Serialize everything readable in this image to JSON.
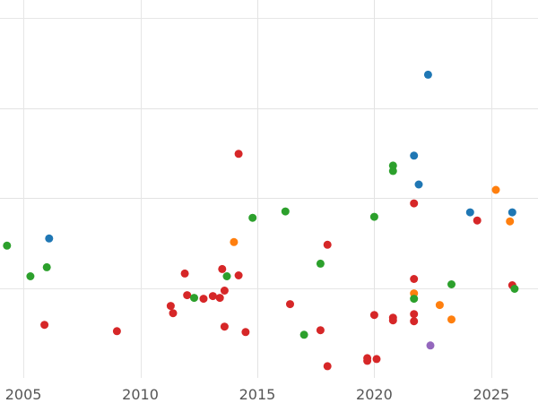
{
  "chart_data": {
    "type": "scatter",
    "title": "",
    "xlabel": "",
    "ylabel": "",
    "xlim": [
      2004,
      2027
    ],
    "ylim": [
      0,
      4.2
    ],
    "grid": true,
    "legend": "none",
    "x_ticks": [
      {
        "value": 2005,
        "label": "2005"
      },
      {
        "value": 2010,
        "label": "2010"
      },
      {
        "value": 2015,
        "label": "2015"
      },
      {
        "value": 2020,
        "label": "2020"
      },
      {
        "value": 2025,
        "label": "2025"
      }
    ],
    "y_gridlines": [
      1,
      2,
      3,
      4
    ],
    "colors": {
      "blue": "#1f77b4",
      "green": "#2ca02c",
      "red": "#d62728",
      "orange": "#ff7f0e",
      "purple": "#9467bd"
    },
    "points": [
      {
        "x": 2004.3,
        "y": 1.47,
        "c": "green"
      },
      {
        "x": 2005.3,
        "y": 1.13,
        "c": "green"
      },
      {
        "x": 2006.0,
        "y": 1.23,
        "c": "green"
      },
      {
        "x": 2006.1,
        "y": 1.55,
        "c": "blue"
      },
      {
        "x": 2005.9,
        "y": 0.59,
        "c": "red"
      },
      {
        "x": 2009.0,
        "y": 0.52,
        "c": "red"
      },
      {
        "x": 2011.3,
        "y": 0.8,
        "c": "red"
      },
      {
        "x": 2011.4,
        "y": 0.72,
        "c": "red"
      },
      {
        "x": 2011.9,
        "y": 1.16,
        "c": "red"
      },
      {
        "x": 2012.0,
        "y": 0.92,
        "c": "red"
      },
      {
        "x": 2012.3,
        "y": 0.89,
        "c": "green"
      },
      {
        "x": 2012.7,
        "y": 0.88,
        "c": "red"
      },
      {
        "x": 2013.1,
        "y": 0.91,
        "c": "red"
      },
      {
        "x": 2013.4,
        "y": 0.89,
        "c": "red"
      },
      {
        "x": 2013.5,
        "y": 1.21,
        "c": "red"
      },
      {
        "x": 2013.6,
        "y": 0.97,
        "c": "red"
      },
      {
        "x": 2013.6,
        "y": 0.57,
        "c": "red"
      },
      {
        "x": 2013.7,
        "y": 1.13,
        "c": "green"
      },
      {
        "x": 2014.0,
        "y": 1.51,
        "c": "orange"
      },
      {
        "x": 2014.2,
        "y": 1.14,
        "c": "red"
      },
      {
        "x": 2014.2,
        "y": 2.49,
        "c": "red"
      },
      {
        "x": 2014.5,
        "y": 0.51,
        "c": "red"
      },
      {
        "x": 2014.8,
        "y": 1.78,
        "c": "green"
      },
      {
        "x": 2016.2,
        "y": 1.85,
        "c": "green"
      },
      {
        "x": 2016.4,
        "y": 0.82,
        "c": "red"
      },
      {
        "x": 2017.0,
        "y": 0.48,
        "c": "green"
      },
      {
        "x": 2017.7,
        "y": 1.27,
        "c": "green"
      },
      {
        "x": 2017.7,
        "y": 0.53,
        "c": "red"
      },
      {
        "x": 2018.0,
        "y": 1.48,
        "c": "red"
      },
      {
        "x": 2018.0,
        "y": 0.13,
        "c": "red"
      },
      {
        "x": 2019.7,
        "y": 0.22,
        "c": "red"
      },
      {
        "x": 2019.7,
        "y": 0.19,
        "c": "red"
      },
      {
        "x": 2020.0,
        "y": 1.79,
        "c": "green"
      },
      {
        "x": 2020.0,
        "y": 0.7,
        "c": "red"
      },
      {
        "x": 2020.1,
        "y": 0.21,
        "c": "red"
      },
      {
        "x": 2020.8,
        "y": 0.67,
        "c": "red"
      },
      {
        "x": 2020.8,
        "y": 0.64,
        "c": "red"
      },
      {
        "x": 2020.8,
        "y": 2.36,
        "c": "green"
      },
      {
        "x": 2020.8,
        "y": 2.3,
        "c": "green"
      },
      {
        "x": 2021.7,
        "y": 1.1,
        "c": "red"
      },
      {
        "x": 2021.7,
        "y": 0.94,
        "c": "orange"
      },
      {
        "x": 2021.7,
        "y": 0.88,
        "c": "green"
      },
      {
        "x": 2021.7,
        "y": 0.71,
        "c": "red"
      },
      {
        "x": 2021.7,
        "y": 0.63,
        "c": "red"
      },
      {
        "x": 2021.7,
        "y": 1.94,
        "c": "red"
      },
      {
        "x": 2021.7,
        "y": 2.47,
        "c": "blue"
      },
      {
        "x": 2021.9,
        "y": 2.15,
        "c": "blue"
      },
      {
        "x": 2022.3,
        "y": 3.37,
        "c": "blue"
      },
      {
        "x": 2022.4,
        "y": 0.36,
        "c": "purple"
      },
      {
        "x": 2022.8,
        "y": 0.81,
        "c": "orange"
      },
      {
        "x": 2023.3,
        "y": 1.04,
        "c": "green"
      },
      {
        "x": 2023.3,
        "y": 0.65,
        "c": "orange"
      },
      {
        "x": 2024.1,
        "y": 1.84,
        "c": "blue"
      },
      {
        "x": 2024.4,
        "y": 1.75,
        "c": "red"
      },
      {
        "x": 2025.2,
        "y": 2.09,
        "c": "orange"
      },
      {
        "x": 2025.8,
        "y": 1.74,
        "c": "orange"
      },
      {
        "x": 2025.9,
        "y": 1.03,
        "c": "red"
      },
      {
        "x": 2025.9,
        "y": 1.84,
        "c": "blue"
      },
      {
        "x": 2026.0,
        "y": 0.99,
        "c": "green"
      }
    ]
  }
}
